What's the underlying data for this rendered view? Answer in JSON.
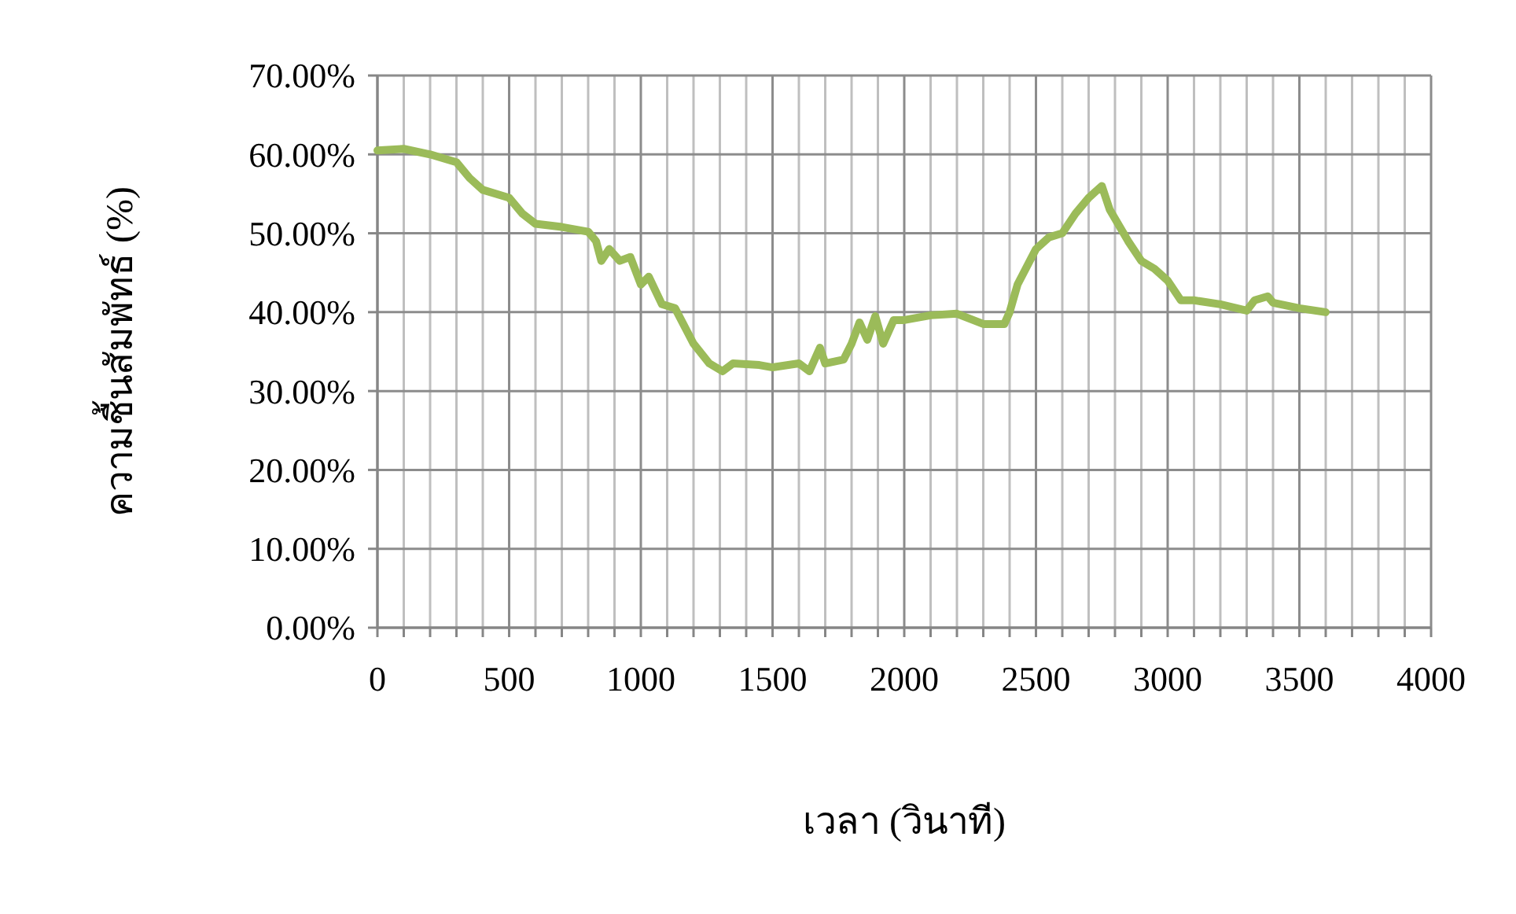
{
  "chart_data": {
    "type": "line",
    "xlabel": "เวลา (วินาที)",
    "ylabel": "ความชื้นสัมพัทธ์ (%)",
    "x": [
      0,
      100,
      200,
      300,
      350,
      400,
      500,
      550,
      600,
      700,
      800,
      830,
      850,
      880,
      920,
      960,
      1000,
      1030,
      1080,
      1130,
      1200,
      1260,
      1310,
      1350,
      1450,
      1500,
      1600,
      1640,
      1680,
      1700,
      1770,
      1800,
      1830,
      1860,
      1890,
      1920,
      1960,
      2000,
      2050,
      2100,
      2200,
      2300,
      2380,
      2400,
      2430,
      2500,
      2550,
      2600,
      2650,
      2700,
      2750,
      2780,
      2850,
      2900,
      2950,
      3000,
      3050,
      3100,
      3200,
      3300,
      3330,
      3380,
      3400,
      3500,
      3600
    ],
    "series": [
      {
        "color": "#9bbb59",
        "values": [
          60.5,
          60.7,
          60,
          59,
          57,
          55.5,
          54.5,
          52.5,
          51.2,
          50.8,
          50.2,
          49,
          46.5,
          48,
          46.5,
          47,
          43.5,
          44.5,
          41,
          40.5,
          36,
          33.5,
          32.5,
          33.5,
          33.3,
          33,
          33.5,
          32.5,
          35.5,
          33.5,
          34,
          36,
          38.7,
          36.5,
          39.5,
          36,
          39,
          39,
          39.3,
          39.6,
          39.8,
          38.5,
          38.5,
          40,
          43.5,
          48,
          49.5,
          50,
          52.5,
          54.5,
          56,
          53,
          49,
          46.5,
          45.5,
          44,
          41.5,
          41.5,
          41,
          40.2,
          41.5,
          42,
          41.2,
          40.5,
          40
        ]
      }
    ],
    "xlim": [
      0,
      4000
    ],
    "xticks": [
      0,
      {
        "value": 100,
        "label": null
      },
      {
        "value": 200,
        "label": null
      },
      {
        "value": 300,
        "label": null
      },
      {
        "value": 400,
        "label": null
      },
      500,
      {
        "value": 600,
        "label": null
      },
      {
        "value": 700,
        "label": null
      },
      {
        "value": 800,
        "label": null
      },
      {
        "value": 900,
        "label": null
      },
      1000,
      {
        "value": 1100,
        "label": null
      },
      {
        "value": 1200,
        "label": null
      },
      {
        "value": 1300,
        "label": null
      },
      {
        "value": 1400,
        "label": null
      },
      1500,
      {
        "value": 1600,
        "label": null
      },
      {
        "value": 1700,
        "label": null
      },
      {
        "value": 1800,
        "label": null
      },
      {
        "value": 1900,
        "label": null
      },
      2000,
      {
        "value": 2100,
        "label": null
      },
      {
        "value": 2200,
        "label": null
      },
      {
        "value": 2300,
        "label": null
      },
      {
        "value": 2400,
        "label": null
      },
      2500,
      {
        "value": 2600,
        "label": null
      },
      {
        "value": 2700,
        "label": null
      },
      {
        "value": 2800,
        "label": null
      },
      {
        "value": 2900,
        "label": null
      },
      3000,
      {
        "value": 3100,
        "label": null
      },
      {
        "value": 3200,
        "label": null
      },
      {
        "value": 3300,
        "label": null
      },
      {
        "value": 3400,
        "label": null
      },
      3500,
      {
        "value": 3600,
        "label": null
      },
      {
        "value": 3700,
        "label": null
      },
      {
        "value": 3800,
        "label": null
      },
      {
        "value": 3900,
        "label": null
      },
      4000
    ],
    "ylim": [
      0,
      70
    ],
    "yticks": [
      {
        "value": 0,
        "label": "0.00%"
      },
      {
        "value": 10,
        "label": "10.00%"
      },
      {
        "value": 20,
        "label": "20.00%"
      },
      {
        "value": 30,
        "label": "30.00%"
      },
      {
        "value": 40,
        "label": "40.00%"
      },
      {
        "value": 50,
        "label": "50.00%"
      },
      {
        "value": 60,
        "label": "60.00%"
      },
      {
        "value": 70,
        "label": "70.00%"
      }
    ],
    "grid": true,
    "marker": "none",
    "line_style": "solid"
  }
}
